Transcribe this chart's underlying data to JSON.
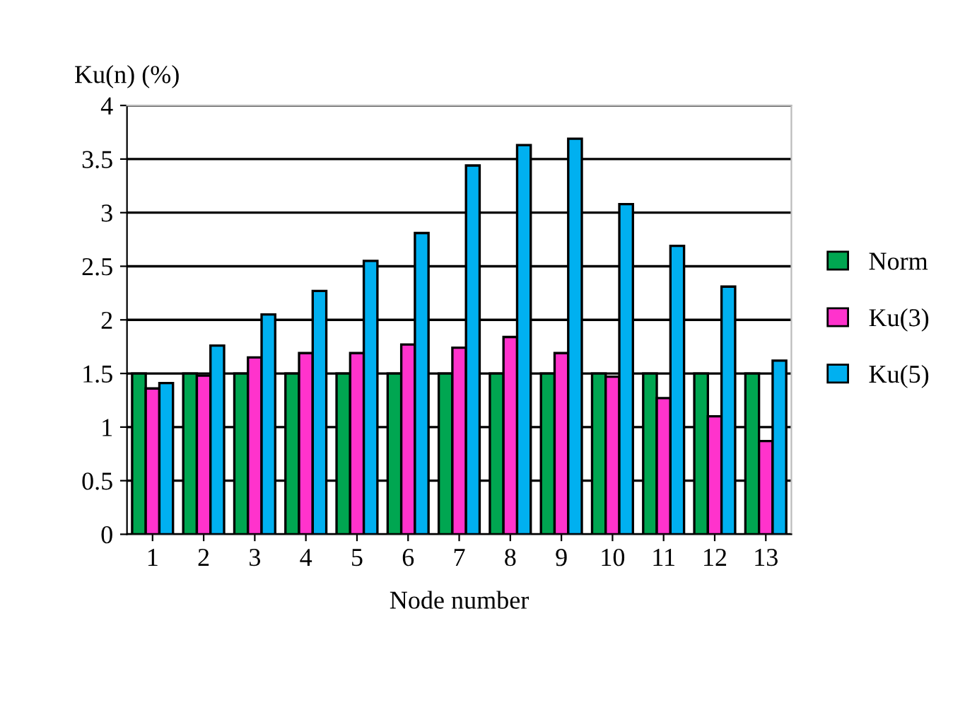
{
  "chart_data": {
    "type": "bar",
    "ylabel": "Ku(n) (%)",
    "xlabel": "Node number",
    "categories": [
      "1",
      "2",
      "3",
      "4",
      "5",
      "6",
      "7",
      "8",
      "9",
      "10",
      "11",
      "12",
      "13"
    ],
    "series": [
      {
        "name": "Norm",
        "color": "#00a651",
        "values": [
          1.5,
          1.5,
          1.5,
          1.5,
          1.5,
          1.5,
          1.5,
          1.5,
          1.5,
          1.5,
          1.5,
          1.5,
          1.5
        ]
      },
      {
        "name": "Ku(3)",
        "color": "#ff33cc",
        "values": [
          1.36,
          1.48,
          1.65,
          1.69,
          1.69,
          1.77,
          1.74,
          1.84,
          1.69,
          1.47,
          1.27,
          1.1,
          0.87
        ]
      },
      {
        "name": "Ku(5)",
        "color": "#00b0f0",
        "values": [
          1.41,
          1.76,
          2.05,
          2.27,
          2.55,
          2.81,
          3.44,
          3.63,
          3.69,
          3.08,
          2.69,
          2.31,
          1.62
        ]
      }
    ],
    "ylim": [
      0,
      4
    ],
    "yticks": [
      0,
      0.5,
      1,
      1.5,
      2,
      2.5,
      3,
      3.5,
      4
    ],
    "grid": "y",
    "legend": "right"
  }
}
